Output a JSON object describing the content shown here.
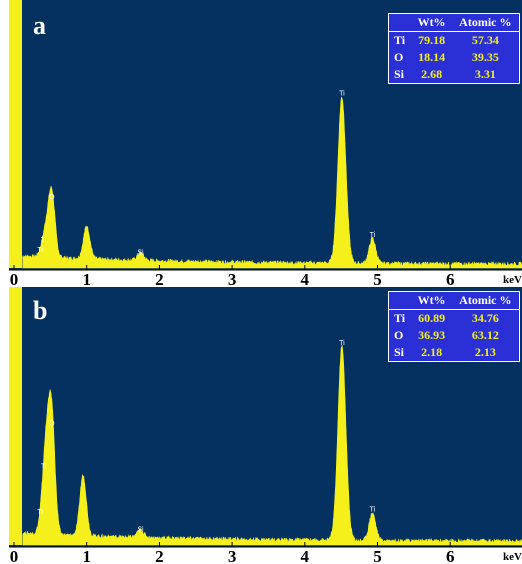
{
  "colors": {
    "plot_bg": "#053160",
    "spectrum": "#f5f01c",
    "table_bg": "#2a2fd6"
  },
  "x_axis_unit": "keV",
  "chart_data": [
    {
      "type": "area",
      "panel_label": "a",
      "xlim": [
        0,
        7
      ],
      "ylim": [
        0,
        100
      ],
      "x_ticks": [
        "0",
        "1",
        "2",
        "3",
        "4",
        "5",
        "6"
      ],
      "x_unit": "keV",
      "peaks": [
        {
          "label": "O",
          "x": 0.52,
          "height": 25
        },
        {
          "label": "Ti",
          "x": 0.45,
          "height": 8
        },
        {
          "label": "Ti",
          "x": 0.4,
          "height": 4
        },
        {
          "label": "",
          "x": 1.0,
          "height": 13
        },
        {
          "label": "Si",
          "x": 1.74,
          "height": 3
        },
        {
          "label": "Ti",
          "x": 4.51,
          "height": 66
        },
        {
          "label": "Ti",
          "x": 4.93,
          "height": 10
        }
      ],
      "composition_table": {
        "headers": [
          "",
          "Wt%",
          "Atomic %"
        ],
        "rows": [
          {
            "element": "Ti",
            "wt": "79.18",
            "atomic": "57.34"
          },
          {
            "element": "O",
            "wt": "18.14",
            "atomic": "39.35"
          },
          {
            "element": "Si",
            "wt": "2.68",
            "atomic": "3.31"
          }
        ]
      }
    },
    {
      "type": "area",
      "panel_label": "b",
      "xlim": [
        0,
        7
      ],
      "ylim": [
        0,
        100
      ],
      "x_ticks": [
        "0",
        "1",
        "2",
        "3",
        "4",
        "5",
        "6"
      ],
      "x_unit": "keV",
      "peaks": [
        {
          "label": "O",
          "x": 0.52,
          "height": 45
        },
        {
          "label": "Ti",
          "x": 0.45,
          "height": 28
        },
        {
          "label": "Ti",
          "x": 0.4,
          "height": 10
        },
        {
          "label": "",
          "x": 0.95,
          "height": 24
        },
        {
          "label": "Si",
          "x": 1.74,
          "height": 3
        },
        {
          "label": "Ti",
          "x": 4.51,
          "height": 77
        },
        {
          "label": "Ti",
          "x": 4.93,
          "height": 11
        }
      ],
      "composition_table": {
        "headers": [
          "",
          "Wt%",
          "Atomic %"
        ],
        "rows": [
          {
            "element": "Ti",
            "wt": "60.89",
            "atomic": "34.76"
          },
          {
            "element": "O",
            "wt": "36.93",
            "atomic": "63.12"
          },
          {
            "element": "Si",
            "wt": "2.18",
            "atomic": "2.13"
          }
        ]
      }
    }
  ]
}
